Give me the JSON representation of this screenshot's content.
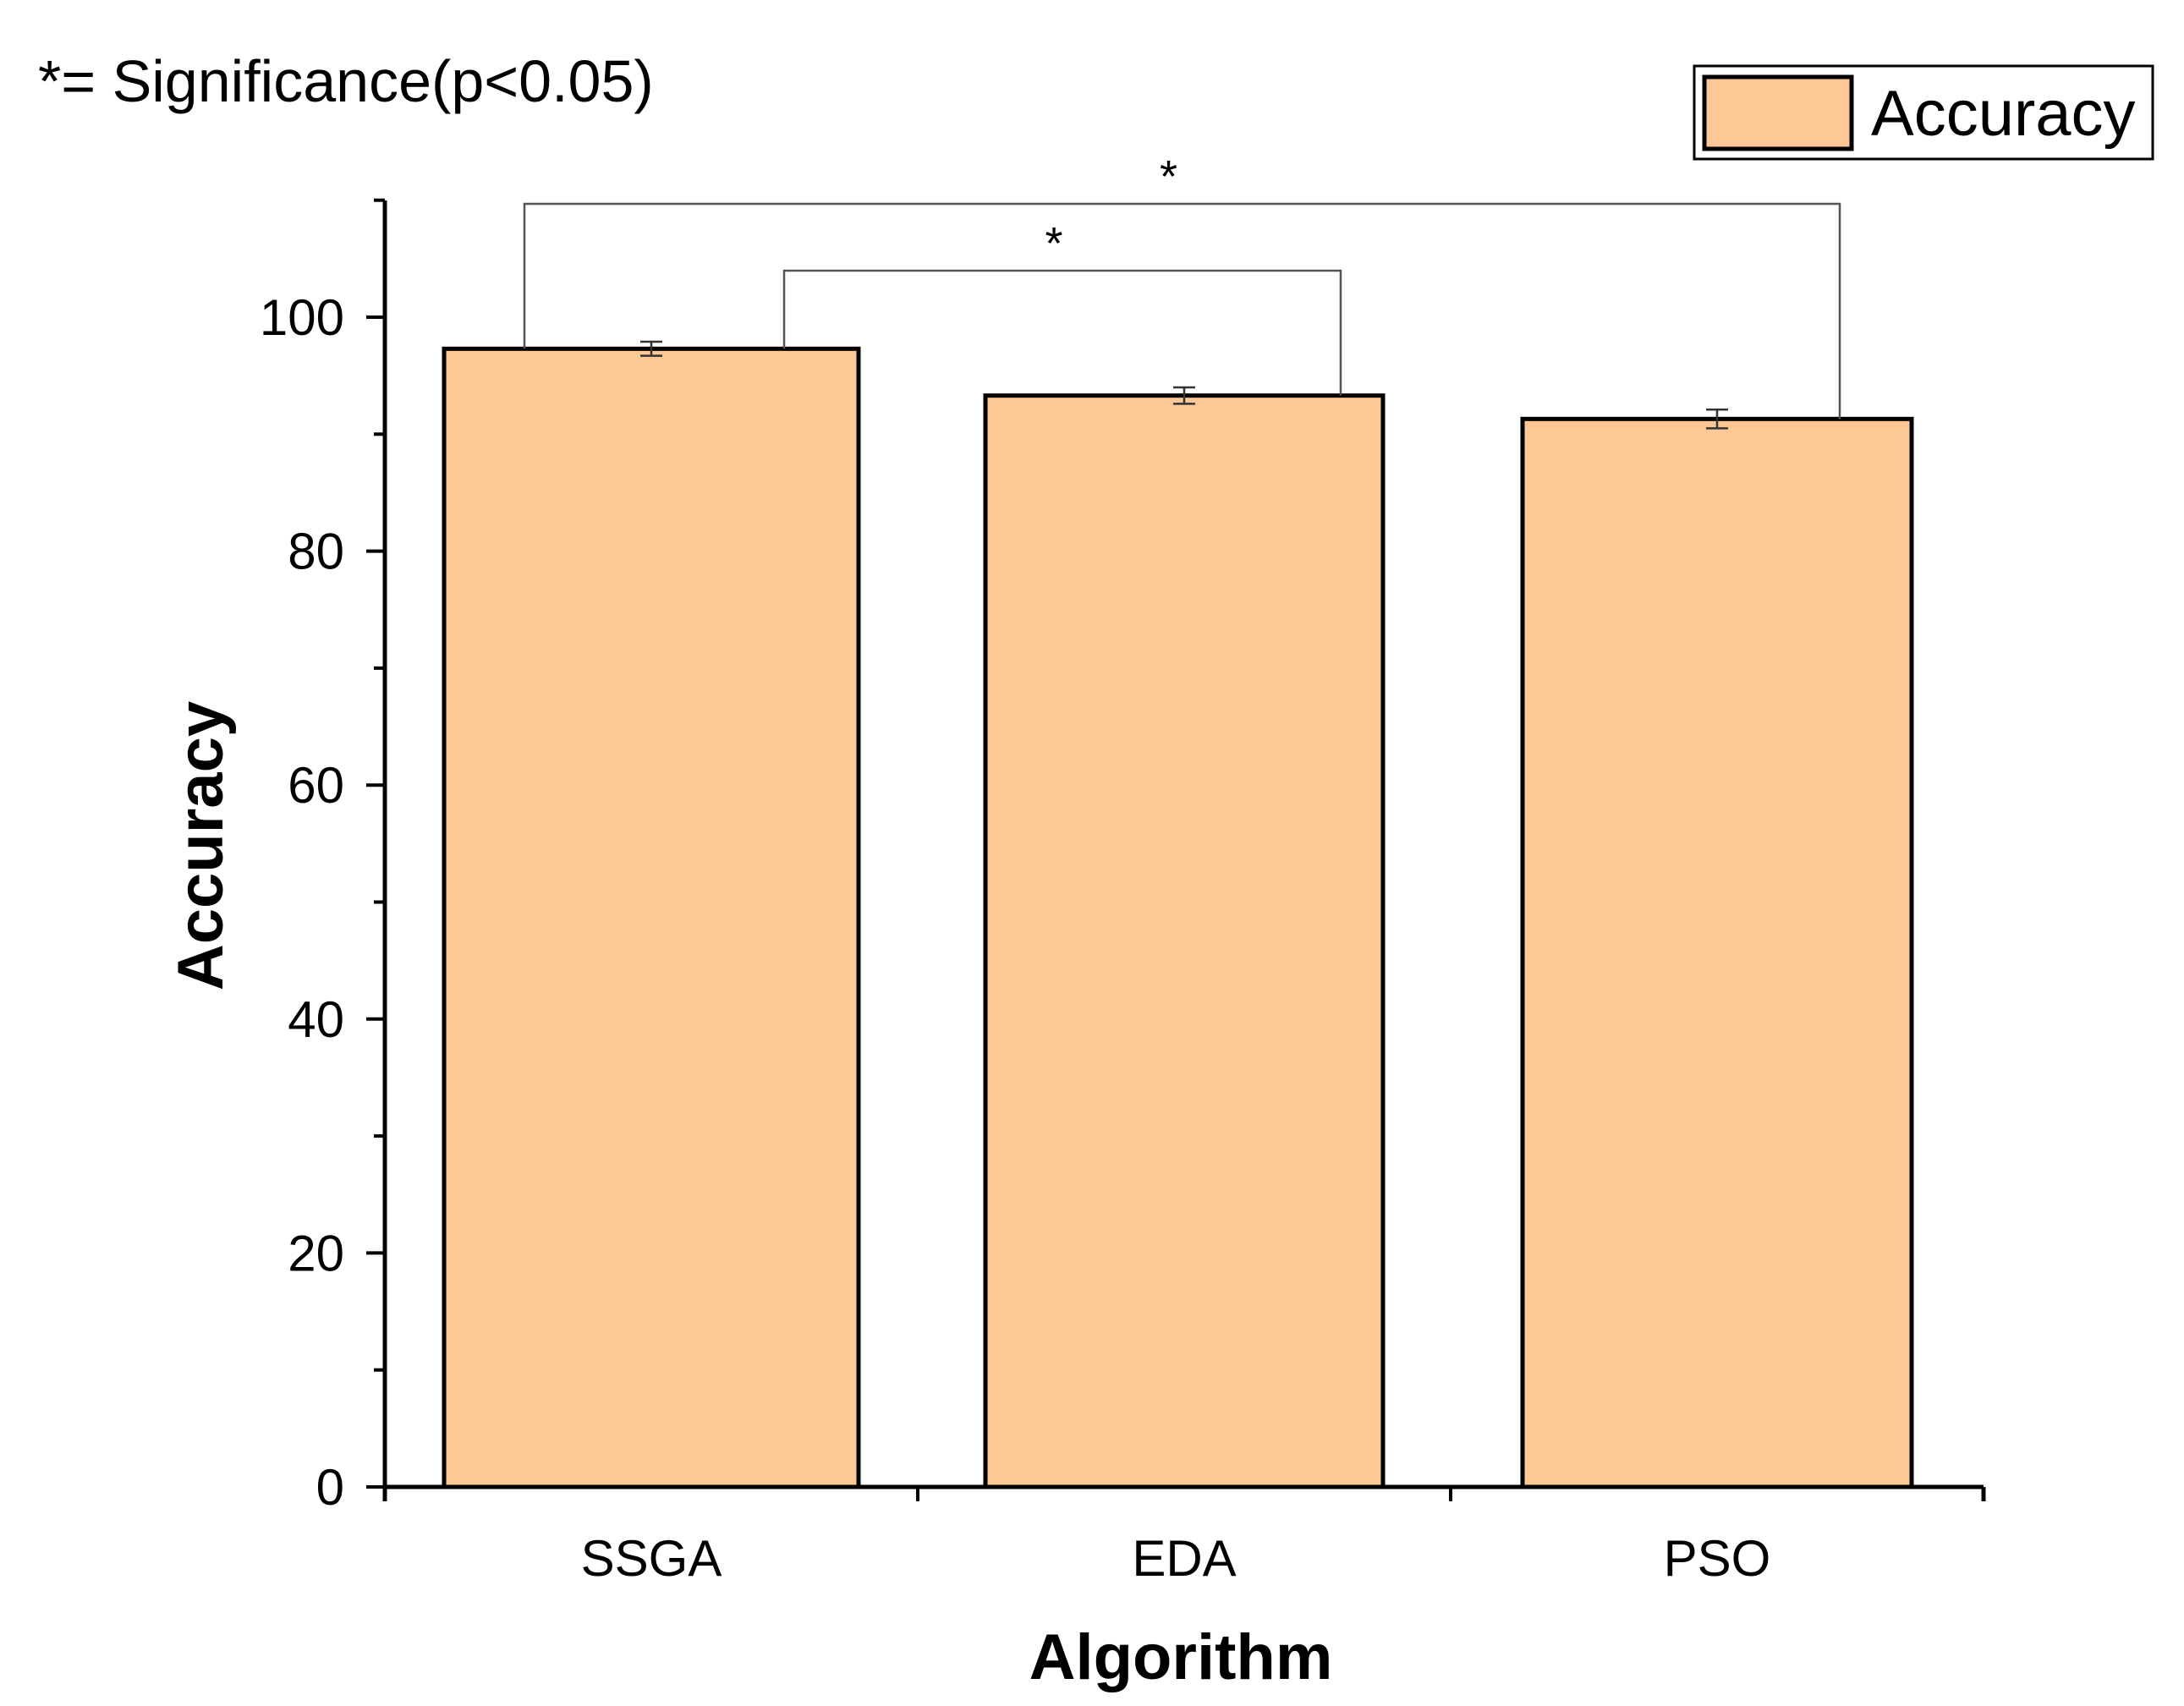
{
  "chart_data": {
    "type": "bar",
    "title": "",
    "annotation_note": "*= Significance(p<0.05)",
    "xlabel": "Algorithm",
    "ylabel": "Accuracy",
    "categories": [
      "SSGA",
      "EDA",
      "PSO"
    ],
    "series": [
      {
        "name": "Accuracy",
        "values": [
          97.3,
          93.3,
          91.3
        ],
        "errors": [
          0.6,
          0.7,
          0.8
        ],
        "color": "#FDC896",
        "edge_color": "#000000"
      }
    ],
    "ylim": [
      0,
      110
    ],
    "yticks": [
      0,
      20,
      40,
      60,
      80,
      100
    ],
    "yticks_minor_step": 10,
    "grid": false,
    "legend_position": "top-right",
    "significance": [
      {
        "from": "SSGA",
        "to": "EDA",
        "label": "*"
      },
      {
        "from": "SSGA",
        "to": "PSO",
        "label": "*"
      }
    ]
  }
}
